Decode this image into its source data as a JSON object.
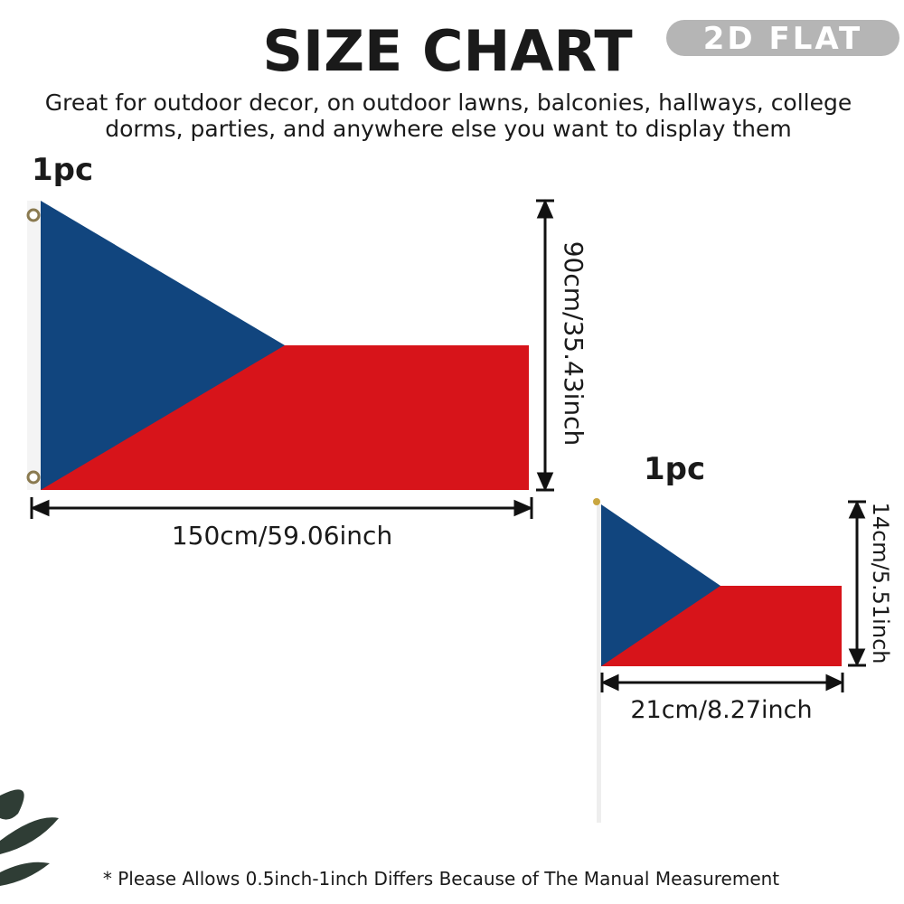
{
  "header": {
    "title": "SIZE CHART",
    "badge": "2D FLAT",
    "description": [
      "Great for outdoor decor, on outdoor lawns, balconies, hallways, college",
      "dorms, parties, and anywhere else you want to display them"
    ]
  },
  "flags": [
    {
      "quantity": "1pc",
      "height_label": "90cm/35.43inch",
      "width_label": "150cm/59.06inch"
    },
    {
      "quantity": "1pc",
      "height_label": "14cm/5.51inch",
      "width_label": "21cm/8.27inch"
    }
  ],
  "footer": {
    "note": "* Please Allows 0.5inch-1inch Differs Because of The Manual Measurement"
  }
}
